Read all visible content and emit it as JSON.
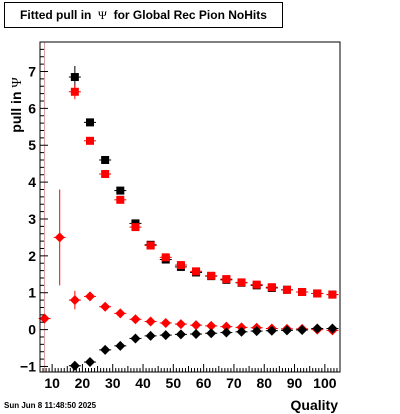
{
  "title_prefix": "Fitted pull in",
  "title_symbol": "Ψ",
  "title_suffix": "for Global Rec Pion NoHits",
  "timestamp": "Sun Jun  8 11:48:50 2025",
  "chart_data": {
    "type": "scatter",
    "xlabel": "Quality",
    "ylabel_text": "pull in",
    "ylabel_symbol": "Ψ",
    "xlim": [
      6,
      105
    ],
    "ylim": [
      -1.15,
      7.8
    ],
    "xticks": [
      10,
      20,
      30,
      40,
      50,
      60,
      70,
      80,
      90,
      100
    ],
    "yticks": [
      -1,
      0,
      1,
      2,
      3,
      4,
      5,
      6,
      7
    ],
    "grid": false,
    "legend": "none",
    "reference_line_x": 7.5,
    "reference_line_color": "#d4a0a0",
    "series": [
      {
        "marker": "square",
        "color": "#000000",
        "x": [
          17.5,
          22.5,
          27.5,
          32.5,
          37.5,
          42.5,
          47.5,
          52.5,
          57.5,
          62.5,
          67.5,
          72.5,
          77.5,
          82.5,
          87.5,
          92.5,
          97.5,
          102.5
        ],
        "y": [
          6.85,
          5.62,
          4.6,
          3.77,
          2.88,
          2.3,
          1.9,
          1.7,
          1.55,
          1.45,
          1.35,
          1.27,
          1.2,
          1.13,
          1.08,
          1.02,
          0.98,
          0.95
        ],
        "yerr": [
          0.3,
          0.1,
          0.06,
          0.06,
          0.05,
          0.04,
          0.03,
          0.03,
          0.03,
          0.03,
          0.02,
          0.02,
          0.02,
          0.02,
          0.02,
          0.02,
          0.02,
          0.02
        ]
      },
      {
        "marker": "square",
        "color": "#ff0000",
        "x": [
          17.5,
          22.5,
          27.5,
          32.5,
          37.5,
          42.5,
          47.5,
          52.5,
          57.5,
          62.5,
          67.5,
          72.5,
          77.5,
          82.5,
          87.5,
          92.5,
          97.5,
          102.5
        ],
        "y": [
          6.45,
          5.12,
          4.22,
          3.52,
          2.78,
          2.28,
          1.96,
          1.75,
          1.58,
          1.46,
          1.37,
          1.28,
          1.22,
          1.15,
          1.08,
          1.02,
          0.98,
          0.95
        ],
        "yerr": [
          0.2,
          0.1,
          0.06,
          0.06,
          0.05,
          0.04,
          0.03,
          0.03,
          0.03,
          0.03,
          0.02,
          0.02,
          0.02,
          0.02,
          0.02,
          0.02,
          0.02,
          0.02
        ]
      },
      {
        "marker": "diamond",
        "color": "#ff0000",
        "x": [
          7.5,
          12.5,
          17.5,
          22.5,
          27.5,
          32.5,
          37.5,
          42.5,
          47.5,
          52.5,
          57.5,
          62.5,
          67.5,
          72.5,
          77.5,
          82.5,
          87.5,
          92.5,
          97.5,
          102.5
        ],
        "y": [
          0.3,
          2.5,
          0.8,
          0.9,
          0.62,
          0.44,
          0.28,
          0.22,
          0.18,
          0.15,
          0.12,
          0.1,
          0.08,
          0.06,
          0.05,
          0.03,
          0.02,
          0.02,
          0.0,
          -0.02
        ],
        "yerr": [
          0.05,
          1.3,
          0.25,
          0.08,
          0.05,
          0.04,
          0.03,
          0.03,
          0.02,
          0.02,
          0.02,
          0.02,
          0.02,
          0.02,
          0.02,
          0.02,
          0.02,
          0.02,
          0.02,
          0.02
        ]
      },
      {
        "marker": "diamond",
        "color": "#000000",
        "x": [
          17.5,
          22.5,
          27.5,
          32.5,
          37.5,
          42.5,
          47.5,
          52.5,
          57.5,
          62.5,
          67.5,
          72.5,
          77.5,
          82.5,
          87.5,
          92.5,
          97.5,
          102.5
        ],
        "y": [
          -0.98,
          -0.88,
          -0.55,
          -0.44,
          -0.24,
          -0.17,
          -0.15,
          -0.13,
          -0.12,
          -0.1,
          -0.08,
          -0.06,
          -0.04,
          -0.03,
          -0.02,
          -0.01,
          0.03,
          0.03
        ],
        "yerr": [
          0.12,
          0.05,
          0.05,
          0.04,
          0.03,
          0.03,
          0.02,
          0.02,
          0.02,
          0.02,
          0.02,
          0.02,
          0.02,
          0.02,
          0.02,
          0.02,
          0.02,
          0.02
        ]
      }
    ]
  }
}
